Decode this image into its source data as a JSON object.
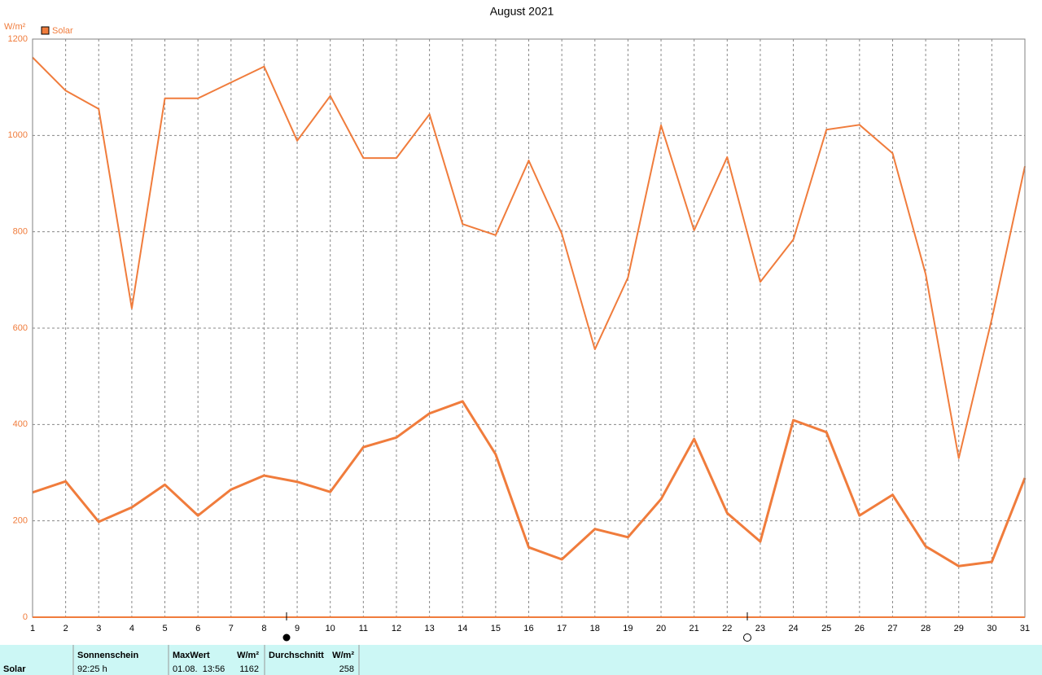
{
  "chart_data": {
    "type": "line",
    "title": "August 2021",
    "y_label": "W/m²",
    "x": [
      1,
      2,
      3,
      4,
      5,
      6,
      7,
      8,
      9,
      10,
      11,
      12,
      13,
      14,
      15,
      16,
      17,
      18,
      19,
      20,
      21,
      22,
      23,
      24,
      25,
      26,
      27,
      28,
      29,
      30,
      31
    ],
    "series": [
      {
        "name": "Solar",
        "color": "#f07c3c",
        "values": [
          1162,
          1093,
          1055,
          641,
          1077,
          1077,
          1110,
          1143,
          989,
          1082,
          953,
          953,
          1044,
          816,
          793,
          948,
          796,
          556,
          705,
          1021,
          803,
          955,
          696,
          784,
          1012,
          1022,
          963,
          712,
          330,
          619,
          936
        ]
      },
      {
        "color": "#f07c3c",
        "values": [
          259,
          282,
          198,
          228,
          275,
          211,
          265,
          294,
          281,
          260,
          353,
          373,
          423,
          448,
          338,
          145,
          120,
          183,
          166,
          245,
          370,
          216,
          157,
          409,
          384,
          211,
          254,
          147,
          106,
          115,
          289
        ]
      }
    ],
    "xlim": [
      1,
      31
    ],
    "xticks": [
      1,
      2,
      3,
      4,
      5,
      6,
      7,
      8,
      9,
      10,
      11,
      12,
      13,
      14,
      15,
      16,
      17,
      18,
      19,
      20,
      21,
      22,
      23,
      24,
      25,
      26,
      27,
      28,
      29,
      30,
      31
    ],
    "ylim": [
      0,
      1200
    ],
    "yticks": [
      0,
      200,
      400,
      600,
      800,
      1000,
      1200
    ],
    "grid": true
  },
  "summary": {
    "row_label": "Solar",
    "sunshine": {
      "header": "Sonnenschein",
      "value": "92:25 h"
    },
    "max": {
      "header": "MaxWert",
      "unit": "W/m²",
      "time": "01.08.  13:56",
      "value": "1162"
    },
    "avg": {
      "header": "Durchschnitt",
      "unit": "W/m²",
      "value": "258"
    }
  }
}
